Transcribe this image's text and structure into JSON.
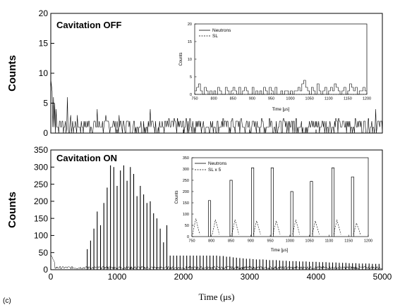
{
  "figure": {
    "sublabel": "(c)"
  },
  "chart_data": [
    {
      "type": "line",
      "title": "Cavitation OFF",
      "ylabel": "Counts",
      "xlabel": "",
      "xlim": [
        0,
        5000
      ],
      "ylim": [
        0,
        20
      ],
      "yticks": [
        0,
        5,
        10,
        15,
        20
      ],
      "xticks": [
        0,
        1000,
        2000,
        3000,
        4000,
        5000
      ],
      "series": [
        {
          "values_note": "noise-level counts",
          "peaks": [
            [
              0,
              9
            ],
            [
              10,
              8
            ],
            [
              20,
              7
            ],
            [
              40,
              6
            ],
            [
              60,
              5
            ],
            [
              80,
              4
            ],
            [
              250,
              6
            ],
            [
              700,
              4
            ],
            [
              1500,
              4
            ],
            [
              2100,
              4
            ],
            [
              2600,
              4
            ],
            [
              3300,
              4
            ],
            [
              3700,
              4
            ],
            [
              4300,
              4
            ],
            [
              4900,
              4
            ]
          ],
          "baseline": 1.2
        }
      ],
      "inset": {
        "xlabel": "Time [μs]",
        "ylabel": "Counts",
        "xlim": [
          750,
          1200
        ],
        "ylim": [
          0,
          20
        ],
        "xticks": [
          750,
          800,
          850,
          900,
          950,
          1000,
          1050,
          1100,
          1150,
          1200
        ],
        "yticks": [
          0,
          5,
          10,
          15,
          20
        ],
        "legend": [
          "Neutrons",
          "SL"
        ],
        "series": [
          {
            "name": "Neutrons",
            "x": [
              750,
              755,
              760,
              765,
              770,
              775,
              780,
              785,
              790,
              795,
              800,
              805,
              810,
              815,
              820,
              825,
              830,
              835,
              840,
              845,
              850,
              855,
              860,
              865,
              870,
              875,
              880,
              885,
              890,
              895,
              900,
              905,
              910,
              915,
              920,
              925,
              930,
              935,
              940,
              945,
              950,
              955,
              960,
              965,
              970,
              975,
              980,
              985,
              990,
              995,
              1000,
              1005,
              1010,
              1015,
              1020,
              1025,
              1030,
              1035,
              1040,
              1045,
              1050,
              1055,
              1060,
              1065,
              1070,
              1075,
              1080,
              1085,
              1090,
              1095,
              1100,
              1105,
              1110,
              1115,
              1120,
              1125,
              1130,
              1135,
              1140,
              1145,
              1150,
              1155,
              1160,
              1165,
              1170,
              1175,
              1180,
              1185,
              1190,
              1195
            ],
            "values": [
              1,
              2,
              3,
              1,
              0,
              2,
              1,
              0,
              1,
              0,
              1,
              0,
              2,
              1,
              0,
              0,
              2,
              1,
              0,
              1,
              2,
              1,
              0,
              2,
              0,
              1,
              2,
              1,
              0,
              0,
              2,
              0,
              1,
              0,
              1,
              0,
              2,
              1,
              0,
              2,
              1,
              0,
              2,
              0,
              0,
              1,
              0,
              1,
              1,
              0,
              1,
              0,
              1,
              1,
              2,
              1,
              3,
              4,
              2,
              1,
              0,
              2,
              1,
              0,
              3,
              1,
              0,
              1,
              2,
              0,
              1,
              2,
              1,
              3,
              2,
              1,
              0,
              1,
              2,
              0,
              1,
              3,
              2,
              1,
              2,
              0,
              1,
              1,
              2,
              1
            ]
          },
          {
            "name": "SL",
            "x": [
              750,
              1200
            ],
            "values": [
              0,
              0
            ]
          }
        ]
      }
    },
    {
      "type": "bar",
      "title": "Cavitation ON",
      "ylabel": "Counts",
      "xlabel": "Time (μs)",
      "xlim": [
        0,
        5000
      ],
      "ylim": [
        0,
        350
      ],
      "yticks": [
        0,
        50,
        100,
        150,
        200,
        250,
        300,
        350
      ],
      "xticks": [
        0,
        1000,
        2000,
        3000,
        4000,
        5000
      ],
      "x": [
        550,
        600,
        650,
        700,
        750,
        800,
        850,
        900,
        950,
        1000,
        1050,
        1100,
        1150,
        1200,
        1250,
        1300,
        1350,
        1400,
        1450,
        1500,
        1550,
        1600,
        1650,
        1700,
        1750,
        1800,
        1850,
        1900,
        1950,
        2000,
        2050,
        2100,
        2150,
        2200,
        2250,
        2300,
        2350,
        2400,
        2450,
        2500,
        2550,
        2600,
        2650,
        2700,
        2750,
        2800,
        2850,
        2900,
        2950,
        3000,
        3050,
        3100,
        3150,
        3200,
        3250,
        3300,
        3350,
        3400,
        3450,
        3500,
        3550,
        3600,
        3650,
        3700,
        3750,
        3800,
        3850,
        3900,
        3950,
        4000,
        4050,
        4100,
        4150,
        4200,
        4250,
        4300,
        4350,
        4400,
        4450,
        4500,
        4550,
        4600,
        4650,
        4700,
        4750,
        4800,
        4850,
        4900,
        4950
      ],
      "values": [
        60,
        85,
        120,
        170,
        130,
        195,
        240,
        305,
        300,
        245,
        290,
        305,
        260,
        300,
        280,
        215,
        245,
        220,
        195,
        200,
        165,
        150,
        120,
        80,
        130,
        95,
        90,
        85,
        80,
        75,
        70,
        65,
        60,
        55,
        55,
        50,
        48,
        45,
        45,
        42,
        40,
        40,
        38,
        38,
        36,
        35,
        34,
        33,
        32,
        32,
        31,
        30,
        30,
        30,
        29,
        28,
        28,
        28,
        27,
        26,
        26,
        25,
        25,
        25,
        24,
        24,
        24,
        23,
        23,
        23,
        22,
        22,
        22,
        21,
        21,
        21,
        20,
        20,
        20,
        19,
        19,
        19,
        18,
        18,
        18,
        18,
        17,
        17,
        17
      ],
      "inset": {
        "xlabel": "Time [μs]",
        "ylabel": "Counts",
        "xlim": [
          750,
          1200
        ],
        "ylim": [
          0,
          350
        ],
        "xticks": [
          750,
          800,
          850,
          900,
          950,
          1000,
          1050,
          1100,
          1150,
          1200
        ],
        "yticks": [
          0,
          50,
          100,
          150,
          200,
          250,
          300,
          350
        ],
        "legend": [
          "Neutrons",
          "SL x 5"
        ],
        "series": [
          {
            "name": "Neutrons",
            "peaks": [
              [
                795,
                160
              ],
              [
                850,
                250
              ],
              [
                905,
                305
              ],
              [
                955,
                305
              ],
              [
                1005,
                200
              ],
              [
                1055,
                245
              ],
              [
                1110,
                305
              ],
              [
                1160,
                265
              ]
            ]
          },
          {
            "name": "SL x 5",
            "peaks": [
              [
                760,
                80
              ],
              [
                810,
                75
              ],
              [
                860,
                75
              ],
              [
                915,
                70
              ],
              [
                965,
                70
              ],
              [
                1015,
                75
              ],
              [
                1065,
                70
              ],
              [
                1120,
                75
              ],
              [
                1170,
                60
              ]
            ]
          }
        ]
      }
    }
  ]
}
